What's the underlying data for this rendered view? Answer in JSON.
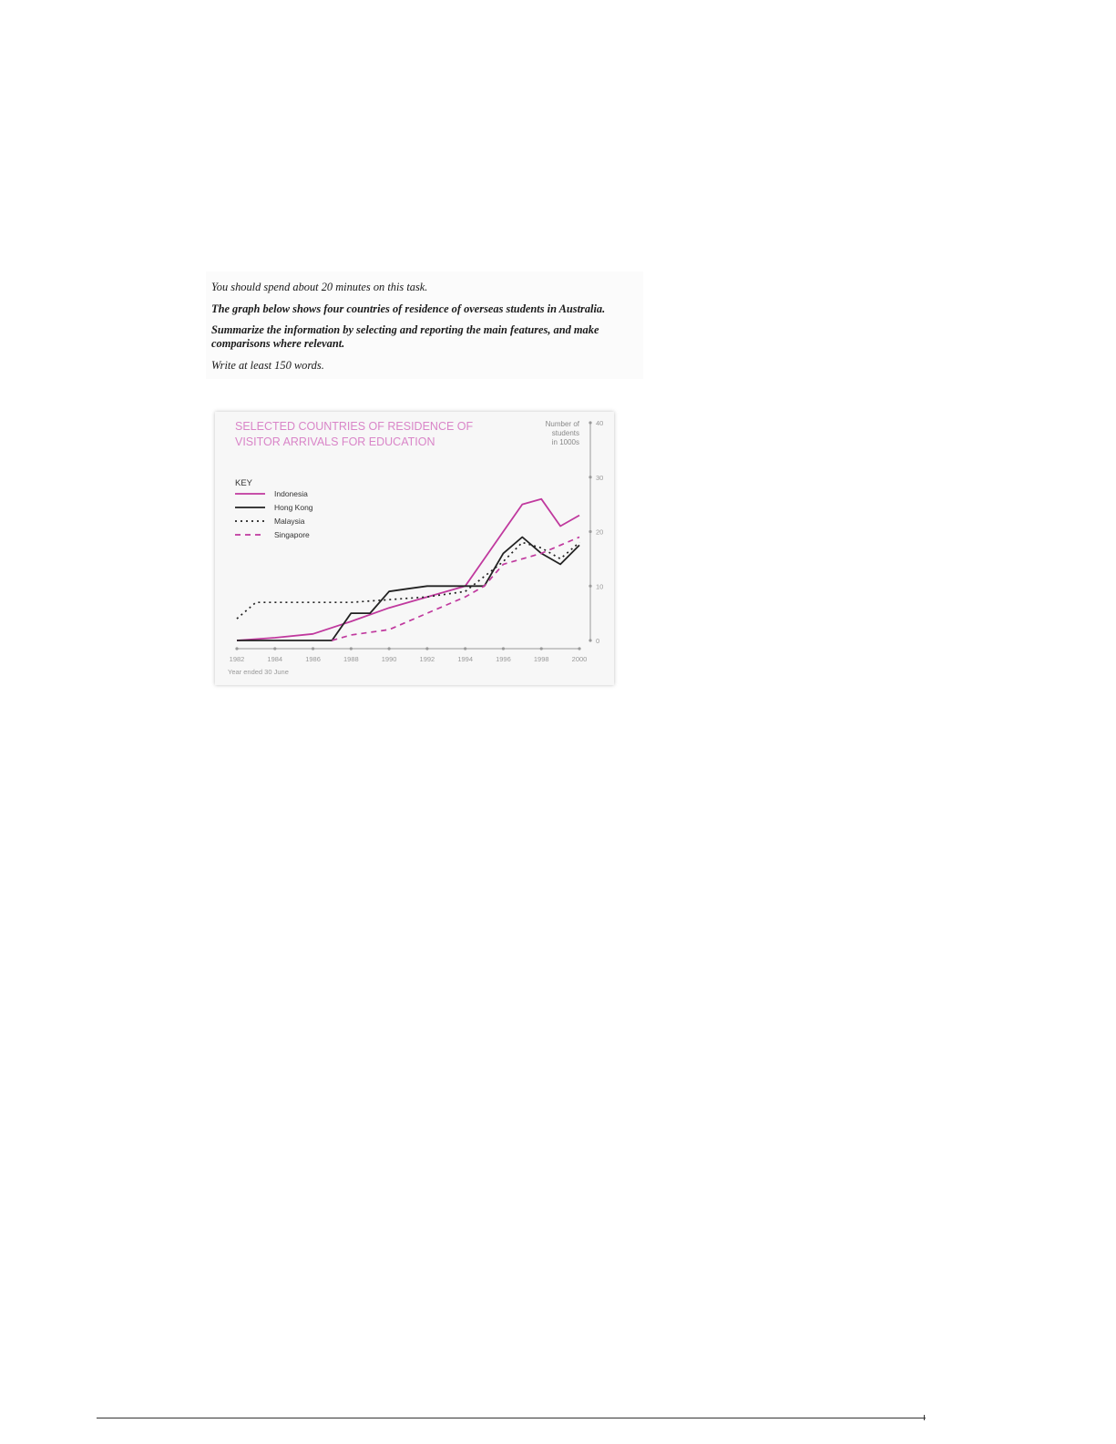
{
  "task": {
    "time_note": "You should spend about 20 minutes on this task.",
    "prompt": "The graph below shows four countries of residence of overseas students in Australia.",
    "instruction": "Summarize the information by selecting and reporting the main features, and make comparisons where relevant.",
    "word_count": "Write at least 150 words."
  },
  "chart_data": {
    "type": "line",
    "title_line1": "SELECTED COUNTRIES OF RESIDENCE OF",
    "title_line2": "VISITOR ARRIVALS FOR EDUCATION",
    "ylabel_line1": "Number of",
    "ylabel_line2": "students",
    "ylabel_line3": "in 1000s",
    "xlabel": "Year ended 30 June",
    "legend_title": "KEY",
    "legend_placement": "left",
    "x_ticks": [
      "1982",
      "1984",
      "1986",
      "1988",
      "1990",
      "1992",
      "1994",
      "1996",
      "1998",
      "2000"
    ],
    "y_ticks": [
      "0",
      "10",
      "20",
      "30",
      "40"
    ],
    "xlim": [
      1982,
      2000
    ],
    "ylim": [
      0,
      40
    ],
    "grid": false,
    "series": [
      {
        "name": "Indonesia",
        "color": "#c0399e",
        "style": "solid",
        "points": [
          [
            1982,
            0
          ],
          [
            1984,
            0.5
          ],
          [
            1986,
            1.2
          ],
          [
            1988,
            3.5
          ],
          [
            1990,
            6
          ],
          [
            1992,
            8
          ],
          [
            1994,
            10
          ],
          [
            1995,
            15
          ],
          [
            1996,
            20
          ],
          [
            1997,
            25
          ],
          [
            1998,
            26
          ],
          [
            1999,
            21
          ],
          [
            2000,
            23
          ]
        ]
      },
      {
        "name": "Hong Kong",
        "color": "#222222",
        "style": "solid",
        "points": [
          [
            1982,
            0
          ],
          [
            1987,
            0
          ],
          [
            1988,
            5
          ],
          [
            1989,
            5
          ],
          [
            1990,
            9
          ],
          [
            1991,
            9.5
          ],
          [
            1992,
            10
          ],
          [
            1993,
            10
          ],
          [
            1994,
            10
          ],
          [
            1995,
            10
          ],
          [
            1996,
            16
          ],
          [
            1997,
            19
          ],
          [
            1998,
            16
          ],
          [
            1999,
            14
          ],
          [
            2000,
            17.5
          ]
        ]
      },
      {
        "name": "Malaysia",
        "color": "#222222",
        "style": "dotted",
        "points": [
          [
            1982,
            4
          ],
          [
            1983,
            7
          ],
          [
            1984,
            7
          ],
          [
            1986,
            7
          ],
          [
            1988,
            7
          ],
          [
            1990,
            7.5
          ],
          [
            1992,
            8
          ],
          [
            1994,
            9
          ],
          [
            1996,
            14.5
          ],
          [
            1997,
            18
          ],
          [
            1998,
            17
          ],
          [
            1999,
            15
          ],
          [
            2000,
            18
          ]
        ]
      },
      {
        "name": "Singapore",
        "color": "#c0399e",
        "style": "dashed",
        "points": [
          [
            1987,
            0
          ],
          [
            1988,
            1
          ],
          [
            1990,
            2
          ],
          [
            1992,
            5
          ],
          [
            1994,
            8
          ],
          [
            1995,
            10
          ],
          [
            1996,
            14
          ],
          [
            1998,
            16
          ],
          [
            2000,
            19
          ]
        ]
      }
    ]
  }
}
